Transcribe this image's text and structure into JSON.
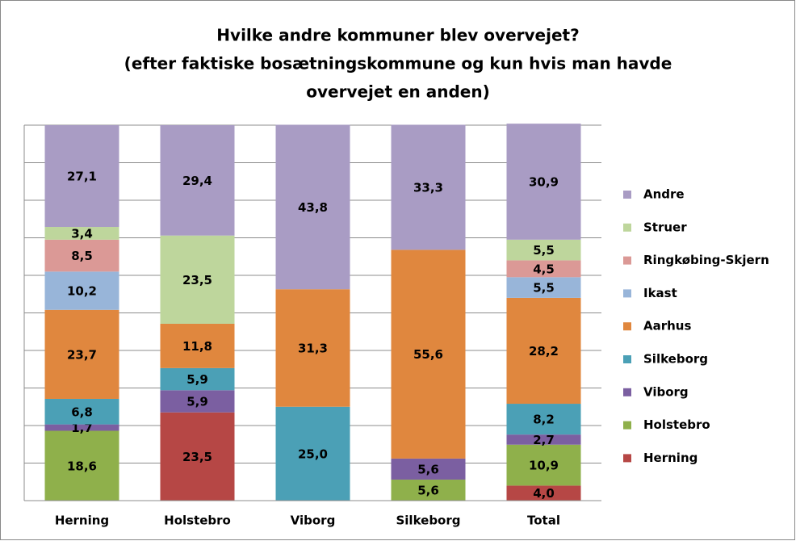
{
  "chart_data": {
    "type": "stacked_bar",
    "title": [
      "Hvilke andre kommuner blev overvejet?",
      "(efter faktiske bosætningskommune og kun hvis man havde",
      "overvejet en anden)"
    ],
    "categories": [
      "Herning",
      "Holstebro",
      "Viborg",
      "Silkeborg",
      "Total"
    ],
    "ylim": [
      0,
      100
    ],
    "yticks": [
      0,
      10,
      20,
      30,
      40,
      50,
      60,
      70,
      80,
      90,
      100
    ],
    "grid": true,
    "legend": "right",
    "series": [
      {
        "name": "Herning",
        "color": "#b64745",
        "values": [
          null,
          23.5,
          null,
          null,
          4.0
        ],
        "value_labels": [
          null,
          "23,5",
          null,
          null,
          "4,0"
        ]
      },
      {
        "name": "Holstebro",
        "color": "#8fb04b",
        "values": [
          18.6,
          null,
          null,
          5.6,
          10.9
        ],
        "value_labels": [
          "18,6",
          null,
          null,
          "5,6",
          "10,9"
        ]
      },
      {
        "name": "Viborg",
        "color": "#7b5fa1",
        "values": [
          1.7,
          5.9,
          null,
          5.6,
          2.7
        ],
        "value_labels": [
          "1,7",
          "5,9",
          null,
          "5,6",
          "2,7"
        ]
      },
      {
        "name": "Silkeborg",
        "color": "#4ba0b6",
        "values": [
          6.8,
          5.9,
          25.0,
          null,
          8.2
        ],
        "value_labels": [
          "6,8",
          "5,9",
          "25,0",
          null,
          "8,2"
        ]
      },
      {
        "name": "Aarhus",
        "color": "#e0873e",
        "values": [
          23.7,
          11.8,
          31.3,
          55.6,
          28.2
        ],
        "value_labels": [
          "23,7",
          "11,8",
          "31,3",
          "55,6",
          "28,2"
        ]
      },
      {
        "name": "Ikast",
        "color": "#98b5d9",
        "values": [
          10.2,
          null,
          null,
          null,
          5.5
        ],
        "value_labels": [
          "10,2",
          null,
          null,
          null,
          "5,5"
        ]
      },
      {
        "name": "Ringkøbing-Skjern",
        "color": "#db9996",
        "values": [
          8.5,
          null,
          null,
          null,
          4.5
        ],
        "value_labels": [
          "8,5",
          null,
          null,
          null,
          "4,5"
        ]
      },
      {
        "name": "Struer",
        "color": "#bed69c",
        "values": [
          3.4,
          23.5,
          null,
          null,
          5.5
        ],
        "value_labels": [
          "3,4",
          "23,5",
          null,
          null,
          "5,5"
        ]
      },
      {
        "name": "Andre",
        "color": "#a99cc4",
        "values": [
          27.1,
          29.4,
          43.8,
          33.3,
          30.9
        ],
        "value_labels": [
          "27,1",
          "29,4",
          "43,8",
          "33,3",
          "30,9"
        ]
      }
    ]
  }
}
